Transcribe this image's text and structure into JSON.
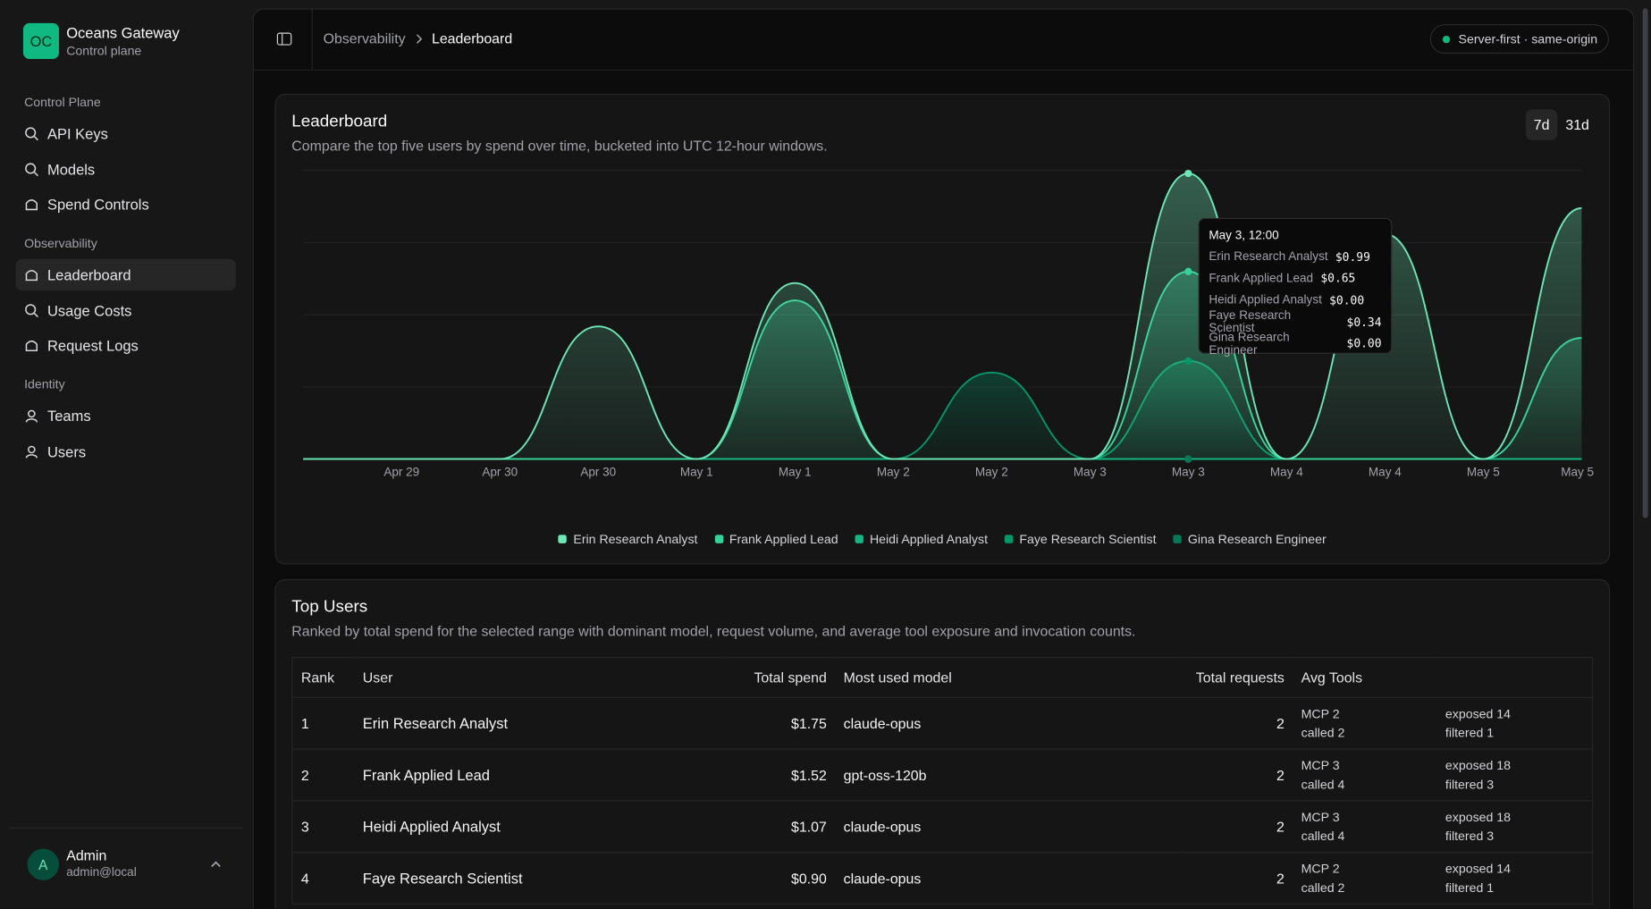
{
  "sidebar": {
    "brand": {
      "logo": "OC",
      "title": "Oceans Gateway",
      "subtitle": "Control plane"
    },
    "sections": [
      {
        "title": "Control Plane",
        "items": [
          {
            "label": "API Keys"
          },
          {
            "label": "Models"
          },
          {
            "label": "Spend Controls"
          }
        ]
      },
      {
        "title": "Observability",
        "items": [
          {
            "label": "Leaderboard",
            "active": true
          },
          {
            "label": "Usage Costs"
          },
          {
            "label": "Request Logs"
          }
        ]
      },
      {
        "title": "Identity",
        "items": [
          {
            "label": "Teams"
          },
          {
            "label": "Users"
          }
        ]
      }
    ],
    "user": {
      "avatar": "A",
      "name": "Admin",
      "email": "admin@local"
    }
  },
  "header": {
    "breadcrumb": [
      "Observability",
      "Leaderboard"
    ],
    "badge": "Server-first · same-origin"
  },
  "chart_card": {
    "title": "Leaderboard",
    "description": "Compare the top five users by spend over time, bucketed into UTC 12-hour windows.",
    "ranges": [
      {
        "label": "7d",
        "active": true
      },
      {
        "label": "31d"
      }
    ]
  },
  "chart_data": {
    "type": "area",
    "categories": [
      null,
      "Apr 29",
      "Apr 30",
      "Apr 30",
      "May 1",
      "May 1",
      "May 2",
      "May 2",
      "May 3",
      "May 3",
      "May 4",
      "May 4",
      "May 5",
      "May 5"
    ],
    "ylim": [
      0,
      1
    ],
    "grid": true,
    "series": [
      {
        "name": "Erin Research Analyst",
        "color": "#6ee7b7",
        "values": [
          0,
          0,
          0,
          0.46,
          0,
          0.61,
          0,
          0,
          0,
          0.99,
          0,
          0.78,
          0,
          0.87
        ]
      },
      {
        "name": "Frank Applied Lead",
        "color": "#34d399",
        "values": [
          0,
          0,
          0,
          0,
          0,
          0.55,
          0,
          0,
          0,
          0.65,
          0,
          0,
          0,
          0.42
        ]
      },
      {
        "name": "Heidi Applied Analyst",
        "color": "#10b981",
        "values": [
          0,
          0,
          0,
          0,
          0,
          0,
          0,
          0,
          0,
          0,
          0,
          0,
          0,
          0
        ]
      },
      {
        "name": "Faye Research Scientist",
        "color": "#059669",
        "values": [
          0,
          0,
          0,
          0,
          0,
          0,
          0,
          0.3,
          0,
          0.34,
          0,
          0,
          0,
          0
        ]
      },
      {
        "name": "Gina Research Engineer",
        "color": "#047857",
        "values": [
          0,
          0,
          0,
          0,
          0,
          0,
          0,
          0,
          0,
          0,
          0,
          0,
          0,
          0
        ]
      }
    ],
    "tooltip": {
      "index": 9,
      "title": "May 3, 12:00",
      "values": [
        "$0.99",
        "$0.65",
        "$0.00",
        "$0.34",
        "$0.00"
      ]
    }
  },
  "table_card": {
    "title": "Top Users",
    "description": "Ranked by total spend for the selected range with dominant model, request volume, and average tool exposure and invocation counts."
  },
  "table": {
    "columns": [
      "Rank",
      "User",
      "Total spend",
      "Most used model",
      "Total requests",
      "Avg Tools"
    ],
    "rows": [
      [
        1,
        "Erin Research Analyst",
        "$1.75",
        "claude-opus",
        2,
        "MCP 2",
        "called 2",
        "exposed 14",
        "filtered 1"
      ],
      [
        2,
        "Frank Applied Lead",
        "$1.52",
        "gpt-oss-120b",
        2,
        "MCP 3",
        "called 4",
        "exposed 18",
        "filtered 3"
      ],
      [
        3,
        "Heidi Applied Analyst",
        "$1.07",
        "claude-opus",
        2,
        "MCP 3",
        "called 4",
        "exposed 18",
        "filtered 3"
      ],
      [
        4,
        "Faye Research Scientist",
        "$0.90",
        "claude-opus",
        2,
        "MCP 2",
        "called 2",
        "exposed 14",
        "filtered 1"
      ]
    ]
  }
}
